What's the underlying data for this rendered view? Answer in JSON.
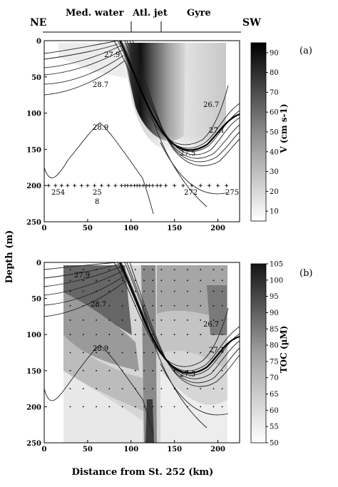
{
  "header": {
    "left_end": "NE",
    "right_end": "SW",
    "regions": [
      "Med. water",
      "Atl. jet",
      "Gyre"
    ]
  },
  "colors": {
    "frame": "#000000",
    "contour": "#222222"
  },
  "chart_data": [
    {
      "panel_label": "(a)",
      "type": "heatmap",
      "ylabel": "Depth (m)",
      "xlabel": "",
      "colorbar_label": "V (cm s-1)",
      "colorbar_ticks": [
        10,
        20,
        30,
        40,
        50,
        60,
        70,
        80,
        90
      ],
      "colorbar_range": [
        5,
        95
      ],
      "xlim": [
        0,
        225
      ],
      "ylim": [
        250,
        0
      ],
      "x_ticks": [
        0,
        50,
        100,
        150,
        200
      ],
      "y_ticks": [
        0,
        50,
        100,
        150,
        200,
        250
      ],
      "contour_labels": [
        {
          "text": "27.9",
          "x": 60,
          "y": 20
        },
        {
          "text": "28.7",
          "x": 58,
          "y": 67
        },
        {
          "text": "28.9",
          "x": 58,
          "y": 125
        },
        {
          "text": "26.7",
          "x": 182,
          "y": 97
        },
        {
          "text": "27.1",
          "x": 190,
          "y": 128
        },
        {
          "text": "27.5",
          "x": 155,
          "y": 153
        }
      ],
      "station_labels": [
        {
          "text": "254",
          "x": 14,
          "y": 212
        },
        {
          "text": "25",
          "x": 58,
          "y": 212
        },
        {
          "text": "8",
          "x": 58,
          "y": 225
        },
        {
          "text": "272",
          "x": 165,
          "y": 212
        },
        {
          "text": "275",
          "x": 205,
          "y": 212
        }
      ],
      "stations_x": [
        5,
        13,
        20,
        27,
        35,
        43,
        50,
        58,
        66,
        74,
        82,
        89,
        93,
        96,
        100,
        104,
        107,
        110,
        114,
        118,
        121,
        125,
        130,
        134,
        140,
        150,
        160,
        170,
        180,
        190,
        200,
        210
      ]
    },
    {
      "panel_label": "(b)",
      "type": "heatmap",
      "ylabel": "Depth (m)",
      "xlabel": "Distance from St. 252 (km)",
      "colorbar_label": "TOC (µM)",
      "colorbar_ticks": [
        50,
        55,
        60,
        65,
        70,
        75,
        80,
        85,
        90,
        95,
        100,
        105
      ],
      "colorbar_range": [
        50,
        105
      ],
      "xlim": [
        0,
        225
      ],
      "ylim": [
        250,
        0
      ],
      "x_ticks": [
        0,
        50,
        100,
        150,
        200
      ],
      "y_ticks": [
        0,
        50,
        100,
        150,
        200,
        250
      ],
      "contour_labels": [
        {
          "text": "27.9",
          "x": 35,
          "y": 18
        },
        {
          "text": "28.7",
          "x": 57,
          "y": 60
        },
        {
          "text": "28.9",
          "x": 58,
          "y": 123
        },
        {
          "text": "26.7",
          "x": 180,
          "y": 90
        },
        {
          "text": "27.1",
          "x": 190,
          "y": 123
        },
        {
          "text": "27.5",
          "x": 155,
          "y": 155
        }
      ]
    }
  ]
}
